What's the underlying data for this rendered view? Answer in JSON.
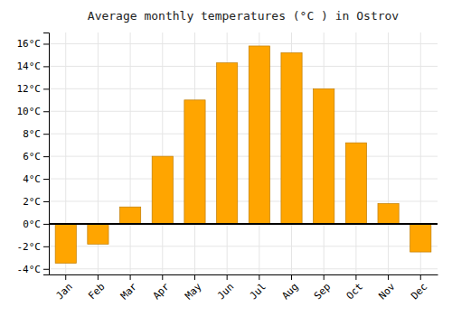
{
  "chart_data": {
    "type": "bar",
    "title": "Average monthly temperatures (°C ) in Ostrov",
    "categories": [
      "Jan",
      "Feb",
      "Mar",
      "Apr",
      "May",
      "Jun",
      "Jul",
      "Aug",
      "Sep",
      "Oct",
      "Nov",
      "Dec"
    ],
    "values": [
      -3.5,
      -1.8,
      1.5,
      6.0,
      11.0,
      14.3,
      15.8,
      15.2,
      12.0,
      7.2,
      1.8,
      -2.5
    ],
    "color": "#FFA500",
    "ylim": [
      -4.5,
      17
    ],
    "yticks": [
      {
        "value": -4,
        "label": "-4°C"
      },
      {
        "value": -2,
        "label": "-2°C"
      },
      {
        "value": 0,
        "label": "0°C"
      },
      {
        "value": 2,
        "label": "2°C"
      },
      {
        "value": 4,
        "label": "4°C"
      },
      {
        "value": 6,
        "label": "6°C"
      },
      {
        "value": 8,
        "label": "8°C"
      },
      {
        "value": 10,
        "label": "10°C"
      },
      {
        "value": 12,
        "label": "12°C"
      },
      {
        "value": 14,
        "label": "14°C"
      },
      {
        "value": 16,
        "label": "16°C"
      }
    ],
    "grid": true
  }
}
